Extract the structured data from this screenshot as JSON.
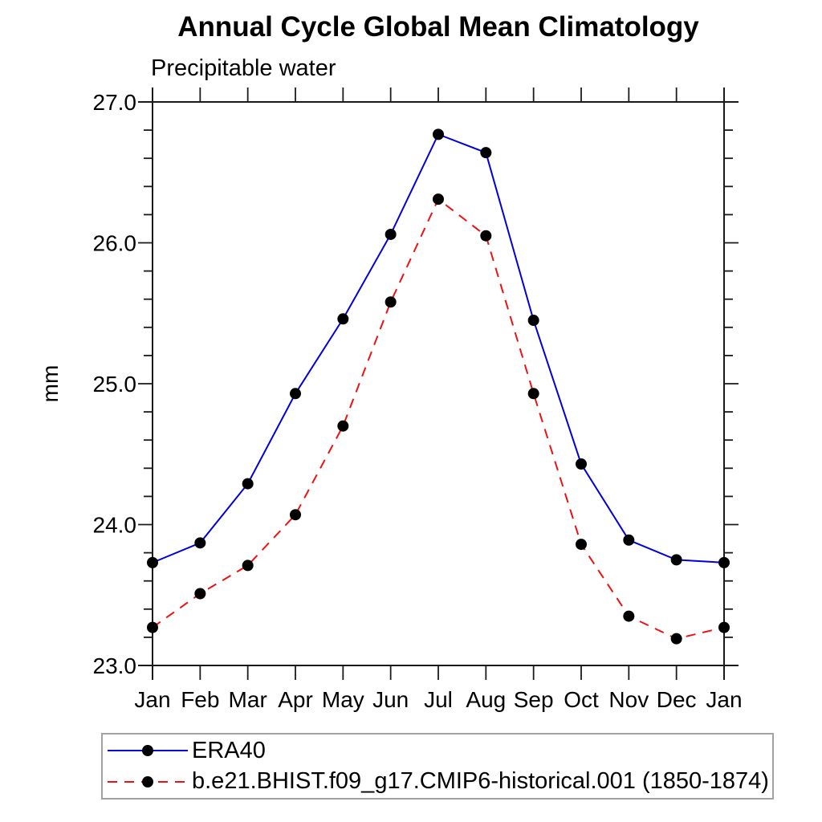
{
  "header": {
    "title": "Annual Cycle Global Mean Climatology",
    "subtitle": "Precipitable water"
  },
  "chart_data": {
    "type": "line",
    "x_categories": [
      "Jan",
      "Feb",
      "Mar",
      "Apr",
      "May",
      "Jun",
      "Jul",
      "Aug",
      "Sep",
      "Oct",
      "Nov",
      "Dec",
      "Jan"
    ],
    "ylabel": "mm",
    "ylim": [
      23.0,
      27.0
    ],
    "ytick_values": [
      23.0,
      24.0,
      25.0,
      26.0,
      27.0
    ],
    "ytick_labels": [
      "23.0",
      "24.0",
      "25.0",
      "26.0",
      "27.0"
    ],
    "y_minor_tick_interval": 0.2,
    "grid": "off",
    "legend_position": "bottom-left-box",
    "axis_color": "#1a1a1a",
    "marker_color": "#000000",
    "series": [
      {
        "name": "ERA40",
        "color": "#0000dd",
        "style": "solid",
        "marker": "circle",
        "values": [
          23.73,
          23.87,
          24.29,
          24.93,
          25.46,
          26.06,
          26.77,
          26.64,
          25.45,
          24.43,
          23.89,
          23.75,
          23.73
        ]
      },
      {
        "name": "b.e21.BHIST.f09_g17.CMIP6-historical.001 (1850-1874)",
        "color": "#ee1111",
        "style": "dashed",
        "marker": "circle",
        "values": [
          23.27,
          23.51,
          23.71,
          24.07,
          24.7,
          25.58,
          26.31,
          26.05,
          24.93,
          23.86,
          23.35,
          23.19,
          23.27
        ]
      }
    ]
  }
}
